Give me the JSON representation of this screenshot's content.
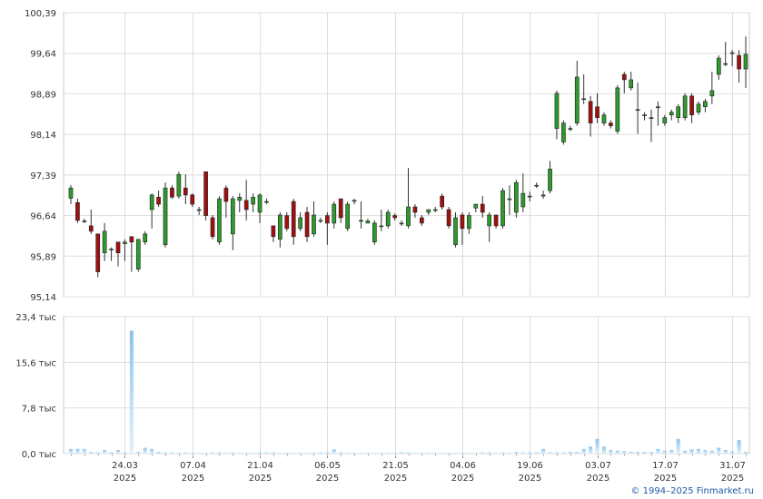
{
  "copyright": "© 1994–2025 Finmarket.ru",
  "colors": {
    "up": "#2e9a2e",
    "down": "#a01010",
    "wick": "#333333",
    "volume": "#8cc4ee",
    "grid": "#dddddd"
  },
  "chart_data": [
    {
      "type": "candlestick",
      "title": "",
      "ylim": [
        95.14,
        100.39
      ],
      "y_ticks": [
        "100,39",
        "99,64",
        "98,89",
        "98,14",
        "97,39",
        "96,64",
        "95,89",
        "95,14"
      ],
      "x_ticks": [
        {
          "date": "24.03",
          "year": "2025",
          "index": 8
        },
        {
          "date": "07.04",
          "year": "2025",
          "index": 18
        },
        {
          "date": "21.04",
          "year": "2025",
          "index": 28
        },
        {
          "date": "06.05",
          "year": "2025",
          "index": 38
        },
        {
          "date": "21.05",
          "year": "2025",
          "index": 48
        },
        {
          "date": "04.06",
          "year": "2025",
          "index": 58
        },
        {
          "date": "19.06",
          "year": "2025",
          "index": 68
        },
        {
          "date": "03.07",
          "year": "2025",
          "index": 78
        },
        {
          "date": "17.07",
          "year": "2025",
          "index": 88
        },
        {
          "date": "31.07",
          "year": "2025",
          "index": 98
        }
      ],
      "candles": [
        [
          96.96,
          97.15,
          96.85,
          97.2
        ],
        [
          96.88,
          96.55,
          96.5,
          96.95
        ],
        [
          96.54,
          96.54,
          96.5,
          96.58
        ],
        [
          96.45,
          96.35,
          96.3,
          96.75
        ],
        [
          96.3,
          95.6,
          95.5,
          96.3
        ],
        [
          95.95,
          96.35,
          95.8,
          96.5
        ],
        [
          96.02,
          96.02,
          95.8,
          96.05
        ],
        [
          96.15,
          95.95,
          95.7,
          96.15
        ],
        [
          96.12,
          96.15,
          95.8,
          96.2
        ],
        [
          96.25,
          96.15,
          95.6,
          96.25
        ],
        [
          95.65,
          96.2,
          95.6,
          96.2
        ],
        [
          96.15,
          96.3,
          96.1,
          96.35
        ],
        [
          96.75,
          97.02,
          96.4,
          97.05
        ],
        [
          96.98,
          96.85,
          96.8,
          97.1
        ],
        [
          96.1,
          97.15,
          96.05,
          97.25
        ],
        [
          97.15,
          96.98,
          96.95,
          97.2
        ],
        [
          97.0,
          97.4,
          96.95,
          97.45
        ],
        [
          97.15,
          97.02,
          96.85,
          97.4
        ],
        [
          97.02,
          96.85,
          96.8,
          97.05
        ],
        [
          96.75,
          96.75,
          96.65,
          96.8
        ],
        [
          97.45,
          96.64,
          96.55,
          97.45
        ],
        [
          96.6,
          96.25,
          96.2,
          96.65
        ],
        [
          96.15,
          96.95,
          96.1,
          97.0
        ],
        [
          97.15,
          96.9,
          96.6,
          97.2
        ],
        [
          96.3,
          96.95,
          96.0,
          97.0
        ],
        [
          96.92,
          96.98,
          96.7,
          97.05
        ],
        [
          96.92,
          96.75,
          96.55,
          97.3
        ],
        [
          96.85,
          96.98,
          96.7,
          97.05
        ],
        [
          96.7,
          97.02,
          96.5,
          97.05
        ],
        [
          96.9,
          96.9,
          96.85,
          96.95
        ],
        [
          96.45,
          96.25,
          96.15,
          96.45
        ],
        [
          96.2,
          96.65,
          96.05,
          96.7
        ],
        [
          96.64,
          96.4,
          96.35,
          96.7
        ],
        [
          96.9,
          96.25,
          96.1,
          96.95
        ],
        [
          96.4,
          96.6,
          96.35,
          96.7
        ],
        [
          96.7,
          96.25,
          96.15,
          96.8
        ],
        [
          96.3,
          96.65,
          96.25,
          96.9
        ],
        [
          96.55,
          96.55,
          96.5,
          96.6
        ],
        [
          96.64,
          96.5,
          96.1,
          96.7
        ],
        [
          96.5,
          96.85,
          96.4,
          96.9
        ],
        [
          96.95,
          96.6,
          96.5,
          96.95
        ],
        [
          96.4,
          96.85,
          96.35,
          96.9
        ],
        [
          96.92,
          96.92,
          96.85,
          96.95
        ],
        [
          96.55,
          96.55,
          96.4,
          96.9
        ],
        [
          96.5,
          96.54,
          96.5,
          96.58
        ],
        [
          96.15,
          96.5,
          96.1,
          96.55
        ],
        [
          96.45,
          96.45,
          96.35,
          96.75
        ],
        [
          96.45,
          96.7,
          96.4,
          96.75
        ],
        [
          96.64,
          96.6,
          96.55,
          96.68
        ],
        [
          96.5,
          96.5,
          96.45,
          96.55
        ],
        [
          96.45,
          96.8,
          96.4,
          97.52
        ],
        [
          96.8,
          96.7,
          96.6,
          96.85
        ],
        [
          96.6,
          96.5,
          96.45,
          96.65
        ],
        [
          96.7,
          96.75,
          96.65,
          96.75
        ],
        [
          96.75,
          96.75,
          96.7,
          96.8
        ],
        [
          97.0,
          96.8,
          96.75,
          97.05
        ],
        [
          96.75,
          96.45,
          96.4,
          96.8
        ],
        [
          96.1,
          96.6,
          96.05,
          96.7
        ],
        [
          96.65,
          96.4,
          96.1,
          96.7
        ],
        [
          96.4,
          96.64,
          96.3,
          96.7
        ],
        [
          96.78,
          96.85,
          96.7,
          96.85
        ],
        [
          96.85,
          96.7,
          96.6,
          97.0
        ],
        [
          96.45,
          96.65,
          96.15,
          96.7
        ],
        [
          96.65,
          96.45,
          96.4,
          96.65
        ],
        [
          96.45,
          97.1,
          96.4,
          97.15
        ],
        [
          96.95,
          96.95,
          96.65,
          97.2
        ],
        [
          96.7,
          97.25,
          96.6,
          97.3
        ],
        [
          96.8,
          97.05,
          96.7,
          97.42
        ],
        [
          97.0,
          97.0,
          96.9,
          97.08
        ],
        [
          97.2,
          97.2,
          97.15,
          97.25
        ],
        [
          97.0,
          97.02,
          96.95,
          97.1
        ],
        [
          97.1,
          97.5,
          97.05,
          97.65
        ],
        [
          98.25,
          98.9,
          98.05,
          98.95
        ],
        [
          98.0,
          98.35,
          97.95,
          98.4
        ],
        [
          98.25,
          98.25,
          98.2,
          98.3
        ],
        [
          98.35,
          99.2,
          98.3,
          99.5
        ],
        [
          98.8,
          98.8,
          98.7,
          99.25
        ],
        [
          98.75,
          98.35,
          98.1,
          98.85
        ],
        [
          98.65,
          98.45,
          98.35,
          98.9
        ],
        [
          98.35,
          98.5,
          98.3,
          98.55
        ],
        [
          98.35,
          98.3,
          98.25,
          98.4
        ],
        [
          98.2,
          99.0,
          98.15,
          99.05
        ],
        [
          99.25,
          99.15,
          98.9,
          99.3
        ],
        [
          99.0,
          99.15,
          98.95,
          99.3
        ],
        [
          98.6,
          98.6,
          98.15,
          99.1
        ],
        [
          98.5,
          98.5,
          98.4,
          98.55
        ],
        [
          98.45,
          98.45,
          98.0,
          98.6
        ],
        [
          98.65,
          98.65,
          98.3,
          98.75
        ],
        [
          98.35,
          98.45,
          98.3,
          98.5
        ],
        [
          98.5,
          98.55,
          98.4,
          98.6
        ],
        [
          98.45,
          98.65,
          98.35,
          98.7
        ],
        [
          98.45,
          98.85,
          98.4,
          98.9
        ],
        [
          98.85,
          98.5,
          98.35,
          98.9
        ],
        [
          98.55,
          98.7,
          98.5,
          98.75
        ],
        [
          98.65,
          98.75,
          98.55,
          98.8
        ],
        [
          98.85,
          98.95,
          98.7,
          99.3
        ],
        [
          99.25,
          99.55,
          99.15,
          99.6
        ],
        [
          99.45,
          99.45,
          99.4,
          99.85
        ],
        [
          99.65,
          99.65,
          99.4,
          99.7
        ],
        [
          99.6,
          99.35,
          99.1,
          99.7
        ],
        [
          99.35,
          99.62,
          99.0,
          99.95
        ]
      ]
    },
    {
      "type": "bar",
      "title": "",
      "ylim": [
        0,
        23.4
      ],
      "y_ticks": [
        "23,4 тыс",
        "15,6 тыс",
        "7,8 тыс",
        "0,0 тыс"
      ],
      "values": [
        0.8,
        0.8,
        0.8,
        0.3,
        0.2,
        0.6,
        0.2,
        0.6,
        0.2,
        21.0,
        0.3,
        1.0,
        0.8,
        0.3,
        0.2,
        0.2,
        0.1,
        0.2,
        0.1,
        0.1,
        0.1,
        0.2,
        0.2,
        0.1,
        0.2,
        0.1,
        0.1,
        0.1,
        0.2,
        0.2,
        0.2,
        0.1,
        0.1,
        0.1,
        0.1,
        0.1,
        0.1,
        0.2,
        0.2,
        0.7,
        0.2,
        0.1,
        0.1,
        0.1,
        0.1,
        0.1,
        0.1,
        0.1,
        0.1,
        0.2,
        0.2,
        0.1,
        0.1,
        0.1,
        0.1,
        0.1,
        0.1,
        0.1,
        0.1,
        0.1,
        0.1,
        0.2,
        0.2,
        0.1,
        0.2,
        0.1,
        0.3,
        0.2,
        0.2,
        0.2,
        0.8,
        0.2,
        0.2,
        0.2,
        0.3,
        0.3,
        0.8,
        1.2,
        2.5,
        1.2,
        0.6,
        0.5,
        0.4,
        0.3,
        0.3,
        0.3,
        0.3,
        0.8,
        0.5,
        0.6,
        2.5,
        0.5,
        0.7,
        0.8,
        0.6,
        0.5,
        1.0,
        0.6,
        0.4,
        2.3,
        0.3
      ]
    }
  ]
}
